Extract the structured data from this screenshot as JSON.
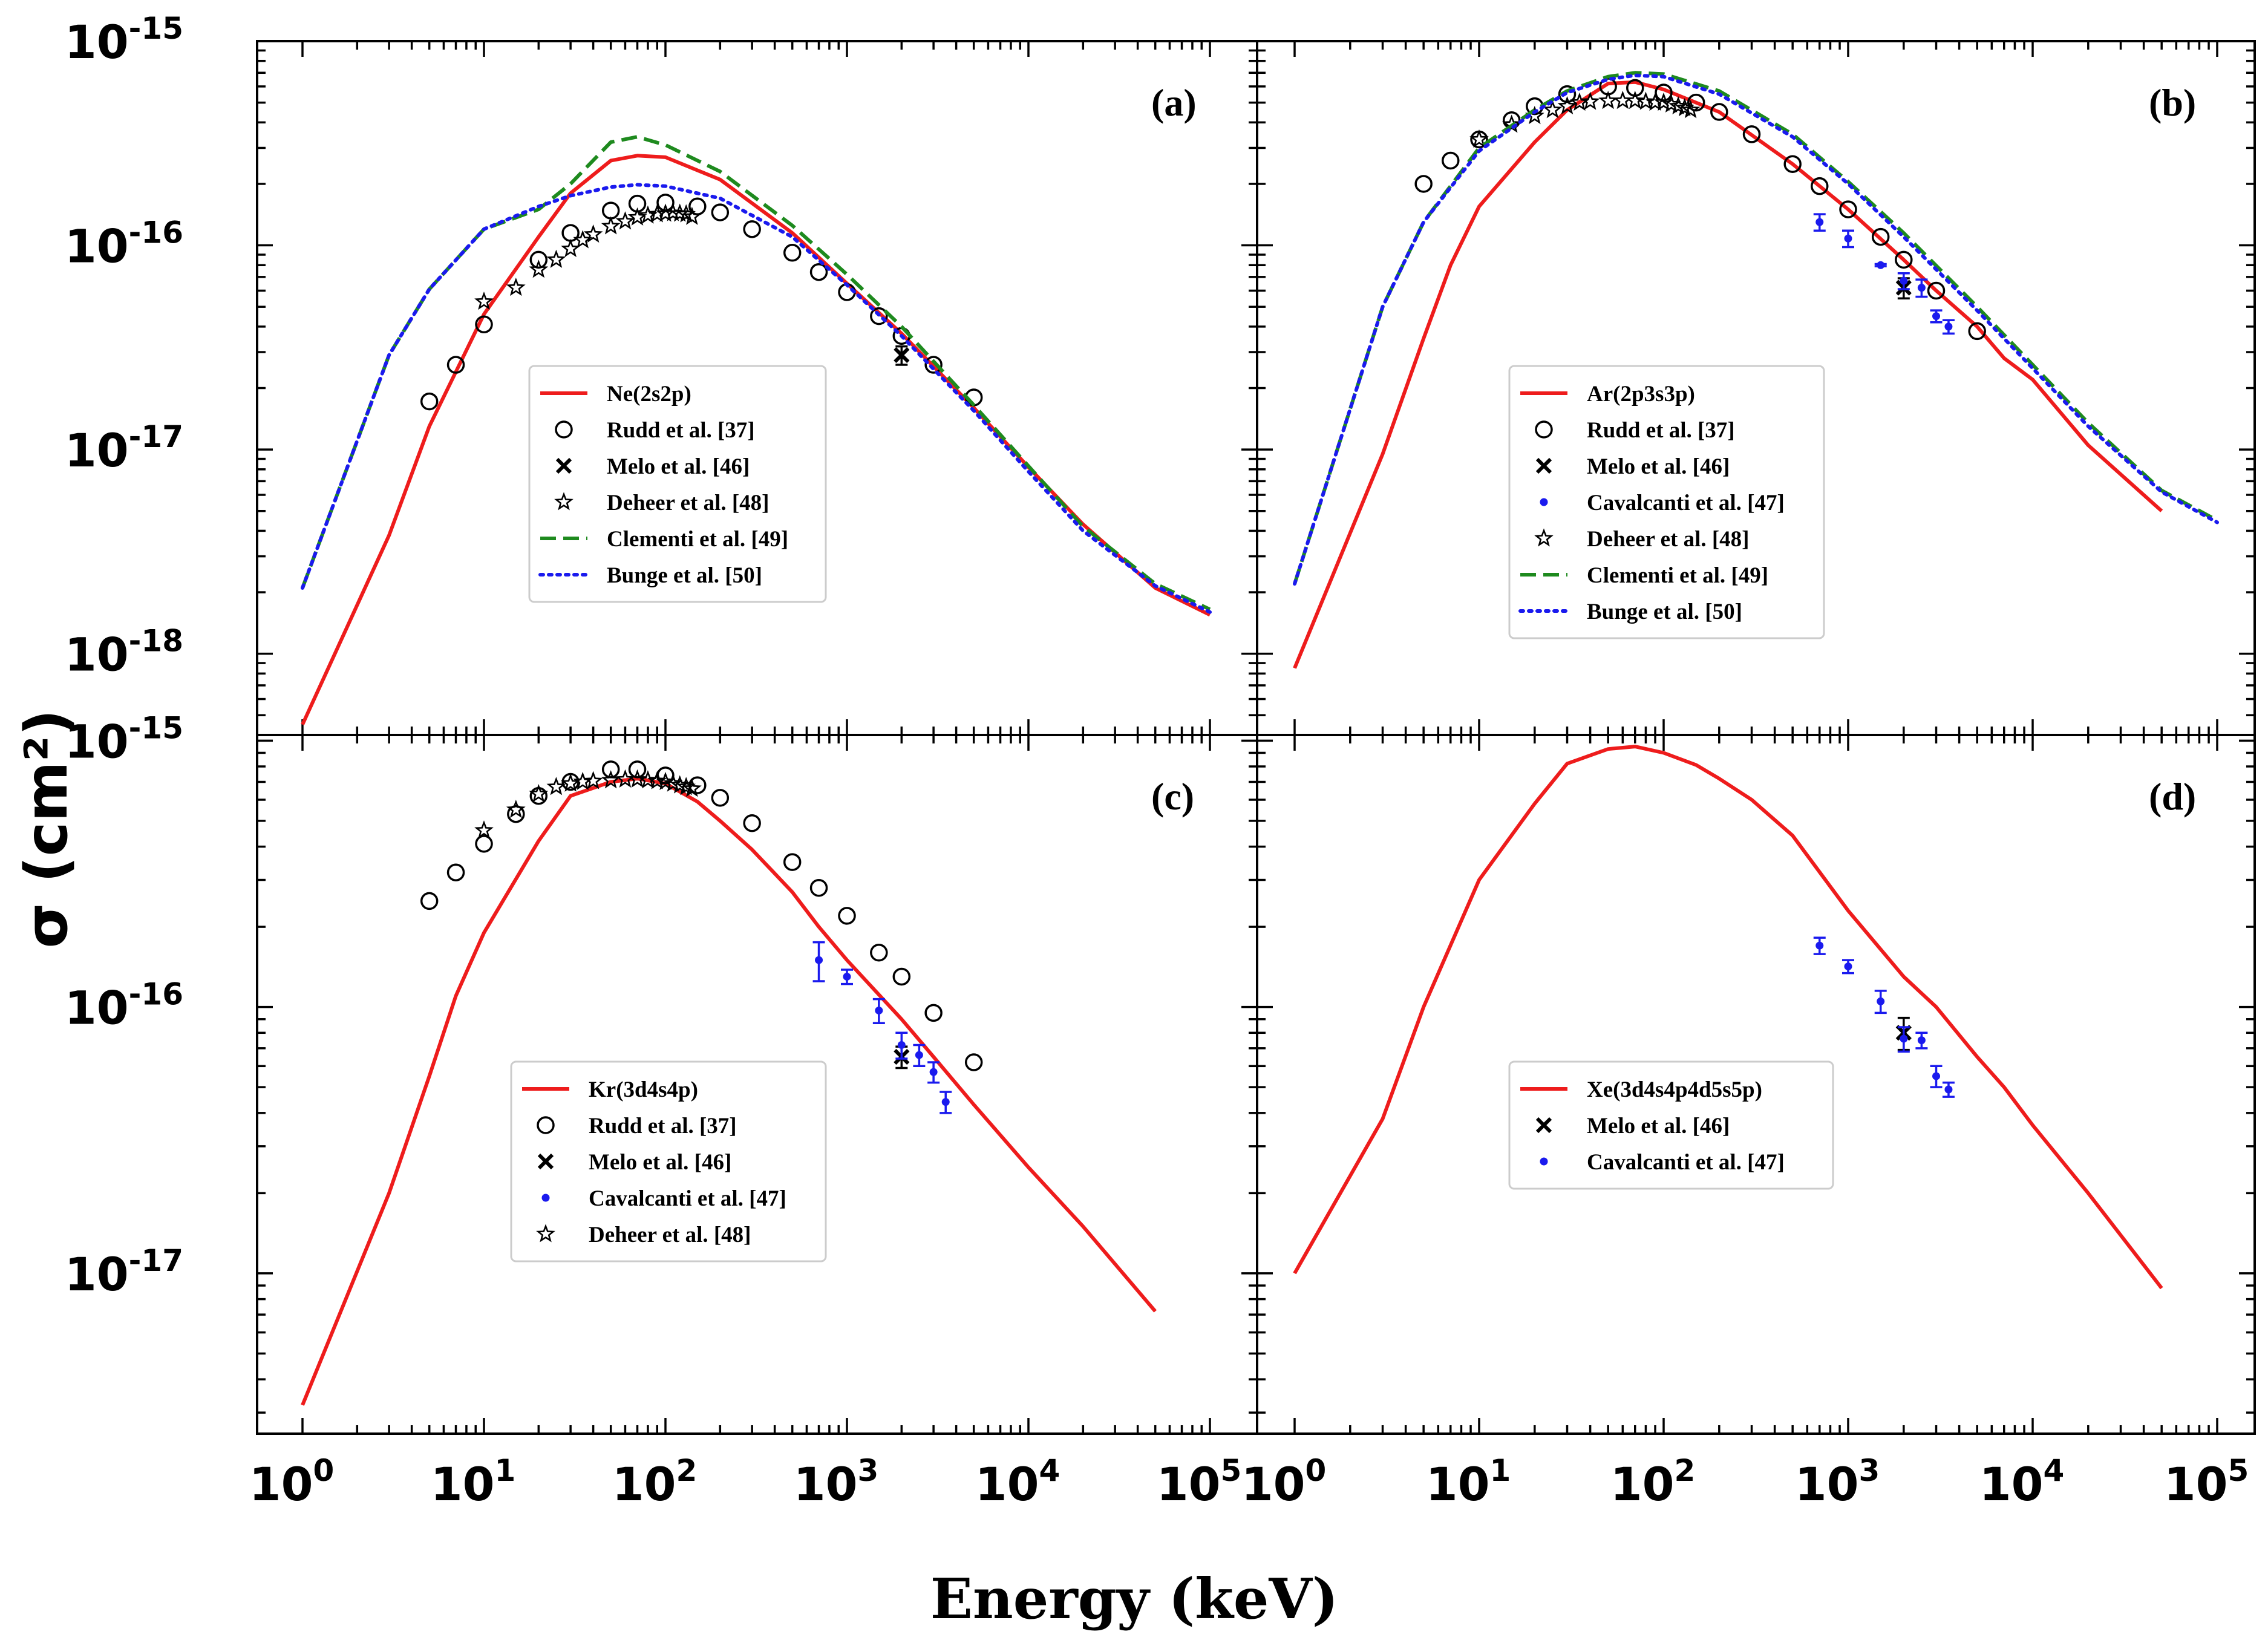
{
  "figure": {
    "ylabel": "σ (cm²)",
    "xlabel": "Energy (keV)",
    "colors": {
      "model": "#ee1c1c",
      "clementi": "#1e8a1e",
      "bunge": "#1a1aee",
      "cavalcanti": "#1a1aee",
      "black": "#000000"
    }
  },
  "chart_data": [
    {
      "id": "a",
      "type": "line",
      "label": "(a)",
      "xscale": "log",
      "yscale": "log",
      "xlim": [
        1,
        100000
      ],
      "ylim": [
        4e-19,
        1e-15
      ],
      "xticks": [
        1,
        10,
        100,
        1000,
        10000,
        100000
      ],
      "yticks": [
        1e-18,
        1e-17,
        1e-16,
        1e-15
      ],
      "show_xticklabels": false,
      "show_yticklabels": true,
      "legend_position": "center-left",
      "series": [
        {
          "name": "Ne(2s2p)",
          "style": "line",
          "color": "#ee1c1c",
          "x": [
            1,
            3,
            5,
            10,
            20,
            30,
            50,
            70,
            100,
            200,
            500,
            1000,
            2000,
            5000,
            10000,
            20000,
            50000,
            100000
          ],
          "y": [
            4.5e-19,
            3.8e-18,
            1.3e-17,
            4.6e-17,
            1.1e-16,
            1.8e-16,
            2.6e-16,
            2.75e-16,
            2.7e-16,
            2.1e-16,
            1.15e-16,
            6.5e-17,
            3.7e-17,
            1.6e-17,
            8.2e-18,
            4.3e-18,
            2.1e-18,
            1.55e-18
          ]
        },
        {
          "name": "Rudd et al. [37]",
          "style": "circle",
          "color": "#000000",
          "x": [
            5,
            7,
            10,
            20,
            30,
            50,
            70,
            100,
            150,
            200,
            300,
            500,
            700,
            1000,
            1500,
            2000,
            3000,
            5000
          ],
          "y": [
            1.72e-17,
            2.6e-17,
            4.1e-17,
            8.5e-17,
            1.15e-16,
            1.48e-16,
            1.6e-16,
            1.62e-16,
            1.55e-16,
            1.45e-16,
            1.2e-16,
            9.2e-17,
            7.4e-17,
            5.9e-17,
            4.5e-17,
            3.6e-17,
            2.6e-17,
            1.8e-17
          ]
        },
        {
          "name": "Melo et al. [46]",
          "style": "x",
          "color": "#000000",
          "x": [
            2000
          ],
          "y": [
            2.9e-17
          ],
          "yerr": [
            3e-18
          ]
        },
        {
          "name": "Deheer et al. [48]",
          "style": "star",
          "color": "#000000",
          "x": [
            10,
            15,
            20,
            25,
            30,
            35,
            40,
            50,
            60,
            70,
            80,
            90,
            100,
            110,
            120,
            130,
            140
          ],
          "y": [
            5.3e-17,
            6.2e-17,
            7.6e-17,
            8.5e-17,
            9.6e-17,
            1.06e-16,
            1.13e-16,
            1.24e-16,
            1.31e-16,
            1.37e-16,
            1.4e-16,
            1.42e-16,
            1.43e-16,
            1.44e-16,
            1.43e-16,
            1.42e-16,
            1.38e-16
          ]
        },
        {
          "name": "Clementi et al. [49]",
          "style": "dashed",
          "color": "#1e8a1e",
          "x": [
            1,
            3,
            5,
            10,
            20,
            30,
            50,
            70,
            100,
            200,
            500,
            1000,
            2000,
            5000,
            10000,
            20000,
            50000,
            100000
          ],
          "y": [
            2.1e-18,
            2.9e-17,
            6.1e-17,
            1.2e-16,
            1.5e-16,
            2e-16,
            3.2e-16,
            3.4e-16,
            3.1e-16,
            2.3e-16,
            1.25e-16,
            7.2e-17,
            4e-17,
            1.65e-17,
            8.3e-18,
            4.2e-18,
            2.2e-18,
            1.65e-18
          ]
        },
        {
          "name": "Bunge et al. [50]",
          "style": "dotted",
          "color": "#1a1aee",
          "x": [
            1,
            3,
            5,
            10,
            20,
            30,
            50,
            70,
            100,
            200,
            500,
            1000,
            2000,
            5000,
            10000,
            20000,
            50000,
            100000
          ],
          "y": [
            2.1e-18,
            2.9e-17,
            6.1e-17,
            1.2e-16,
            1.55e-16,
            1.75e-16,
            1.93e-16,
            1.98e-16,
            1.95e-16,
            1.7e-16,
            1.1e-16,
            6.4e-17,
            3.6e-17,
            1.55e-17,
            7.8e-18,
            4e-18,
            2.15e-18,
            1.6e-18
          ]
        }
      ]
    },
    {
      "id": "b",
      "type": "line",
      "label": "(b)",
      "xscale": "log",
      "yscale": "log",
      "xlim": [
        1,
        100000
      ],
      "ylim": [
        4e-19,
        1e-15
      ],
      "xticks": [
        1,
        10,
        100,
        1000,
        10000,
        100000
      ],
      "yticks": [
        1e-18,
        1e-17,
        1e-16,
        1e-15
      ],
      "show_xticklabels": false,
      "show_yticklabels": false,
      "legend_position": "center-right",
      "series": [
        {
          "name": "Ar(2p3s3p)",
          "style": "line",
          "color": "#ee1c1c",
          "x": [
            1,
            3,
            5,
            7,
            10,
            20,
            30,
            50,
            70,
            100,
            200,
            500,
            1000,
            2000,
            3000,
            5000,
            7000,
            10000,
            20000,
            50000
          ],
          "y": [
            8.5e-19,
            9.5e-18,
            3.5e-17,
            8e-17,
            1.55e-16,
            3.2e-16,
            4.6e-16,
            6.2e-16,
            6.3e-16,
            5.8e-16,
            4.5e-16,
            2.5e-16,
            1.5e-16,
            8.5e-17,
            6e-17,
            4e-17,
            2.8e-17,
            2.2e-17,
            1.05e-17,
            5e-18
          ]
        },
        {
          "name": "Rudd et al. [37]",
          "style": "circle",
          "color": "#000000",
          "x": [
            5,
            7,
            10,
            15,
            20,
            30,
            50,
            70,
            100,
            150,
            200,
            300,
            500,
            700,
            1000,
            1500,
            2000,
            3000,
            5000
          ],
          "y": [
            2e-16,
            2.6e-16,
            3.3e-16,
            4.1e-16,
            4.8e-16,
            5.5e-16,
            6e-16,
            5.9e-16,
            5.6e-16,
            5e-16,
            4.5e-16,
            3.5e-16,
            2.5e-16,
            1.95e-16,
            1.5e-16,
            1.1e-16,
            8.5e-17,
            6e-17,
            3.8e-17
          ]
        },
        {
          "name": "Melo et al. [46]",
          "style": "x",
          "color": "#000000",
          "x": [
            2000
          ],
          "y": [
            6.2e-17
          ],
          "yerr": [
            7e-18
          ]
        },
        {
          "name": "Cavalcanti et al. [47]",
          "style": "dot",
          "color": "#1a1aee",
          "x": [
            700,
            1000,
            1500,
            2000,
            2500,
            3000,
            3500
          ],
          "y": [
            1.3e-16,
            1.08e-16,
            8e-17,
            6.7e-17,
            6.2e-17,
            4.5e-17,
            4e-17
          ],
          "yerr": [
            1.2e-17,
            1e-17,
            1e-18,
            6e-18,
            6e-18,
            3e-18,
            3e-18
          ]
        },
        {
          "name": "Deheer et al. [48]",
          "style": "star",
          "color": "#000000",
          "x": [
            10,
            15,
            20,
            25,
            30,
            35,
            40,
            50,
            60,
            70,
            80,
            90,
            100,
            110,
            120,
            130,
            140
          ],
          "y": [
            3.3e-16,
            3.9e-16,
            4.3e-16,
            4.6e-16,
            4.8e-16,
            5e-16,
            5.05e-16,
            5.1e-16,
            5.1e-16,
            5.1e-16,
            5.05e-16,
            5e-16,
            5e-16,
            4.9e-16,
            4.8e-16,
            4.7e-16,
            4.6e-16
          ]
        },
        {
          "name": "Clementi et al. [49]",
          "style": "dashed",
          "color": "#1e8a1e",
          "x": [
            1,
            3,
            5,
            10,
            20,
            30,
            50,
            70,
            100,
            200,
            500,
            1000,
            2000,
            5000,
            10000,
            20000,
            50000,
            100000
          ],
          "y": [
            2.2e-18,
            5e-17,
            1.3e-16,
            3e-16,
            4.6e-16,
            5.7e-16,
            6.7e-16,
            7e-16,
            6.9e-16,
            5.7e-16,
            3.5e-16,
            2.05e-16,
            1.15e-16,
            5e-17,
            2.6e-17,
            1.35e-17,
            6.3e-18,
            4.5e-18
          ]
        },
        {
          "name": "Bunge et al. [50]",
          "style": "dotted",
          "color": "#1a1aee",
          "x": [
            1,
            3,
            5,
            10,
            20,
            30,
            50,
            70,
            100,
            200,
            500,
            1000,
            2000,
            5000,
            10000,
            20000,
            50000,
            100000
          ],
          "y": [
            2.2e-18,
            5e-17,
            1.3e-16,
            2.9e-16,
            4.5e-16,
            5.6e-16,
            6.5e-16,
            6.8e-16,
            6.7e-16,
            5.5e-16,
            3.4e-16,
            2e-16,
            1.1e-16,
            4.8e-17,
            2.5e-17,
            1.3e-17,
            6.2e-18,
            4.4e-18
          ]
        }
      ]
    },
    {
      "id": "c",
      "type": "line",
      "label": "(c)",
      "xscale": "log",
      "yscale": "log",
      "xlim": [
        1,
        100000
      ],
      "ylim": [
        2.5e-18,
        1.05e-15
      ],
      "xticks": [
        1,
        10,
        100,
        1000,
        10000,
        100000
      ],
      "yticks": [
        1e-17,
        1e-16,
        1e-15
      ],
      "show_xticklabels": true,
      "show_yticklabels": true,
      "legend_position": "center-left",
      "series": [
        {
          "name": "Kr(3d4s4p)",
          "style": "line",
          "color": "#ee1c1c",
          "x": [
            1,
            3,
            5,
            7,
            10,
            20,
            30,
            50,
            70,
            100,
            150,
            200,
            300,
            500,
            700,
            1000,
            2000,
            3000,
            5000,
            10000,
            20000,
            50000
          ],
          "y": [
            3.2e-18,
            2e-17,
            5.5e-17,
            1.1e-16,
            1.9e-16,
            4.2e-16,
            6.2e-16,
            7e-16,
            7.2e-16,
            6.9e-16,
            5.9e-16,
            5e-16,
            3.9e-16,
            2.7e-16,
            2e-16,
            1.5e-16,
            9e-17,
            6.5e-17,
            4.3e-17,
            2.5e-17,
            1.5e-17,
            7.2e-18
          ]
        },
        {
          "name": "Rudd et al. [37]",
          "style": "circle",
          "color": "#000000",
          "x": [
            5,
            7,
            10,
            15,
            20,
            30,
            50,
            70,
            100,
            150,
            200,
            300,
            500,
            700,
            1000,
            1500,
            2000,
            3000,
            5000
          ],
          "y": [
            2.5e-16,
            3.2e-16,
            4.1e-16,
            5.3e-16,
            6.2e-16,
            7e-16,
            7.8e-16,
            7.8e-16,
            7.4e-16,
            6.8e-16,
            6.1e-16,
            4.9e-16,
            3.5e-16,
            2.8e-16,
            2.2e-16,
            1.6e-16,
            1.3e-16,
            9.5e-17,
            6.2e-17
          ]
        },
        {
          "name": "Melo et al. [46]",
          "style": "x",
          "color": "#000000",
          "x": [
            2000
          ],
          "y": [
            6.5e-17
          ],
          "yerr": [
            6e-18
          ]
        },
        {
          "name": "Cavalcanti et al. [47]",
          "style": "dot",
          "color": "#1a1aee",
          "x": [
            700,
            1000,
            1500,
            2000,
            2500,
            3000,
            3500
          ],
          "y": [
            1.5e-16,
            1.3e-16,
            9.7e-17,
            7.2e-17,
            6.6e-17,
            5.7e-17,
            4.4e-17
          ],
          "yerr": [
            2.5e-17,
            8e-18,
            1e-17,
            8e-18,
            6e-18,
            5e-18,
            4e-18
          ]
        },
        {
          "name": "Deheer et al. [48]",
          "style": "star",
          "color": "#000000",
          "x": [
            10,
            15,
            20,
            25,
            30,
            35,
            40,
            50,
            60,
            70,
            80,
            90,
            100,
            110,
            120,
            130,
            140
          ],
          "y": [
            4.6e-16,
            5.5e-16,
            6.3e-16,
            6.7e-16,
            6.9e-16,
            7e-16,
            7.05e-16,
            7.1e-16,
            7.15e-16,
            7.15e-16,
            7.1e-16,
            7.05e-16,
            7e-16,
            6.9e-16,
            6.8e-16,
            6.7e-16,
            6.6e-16
          ]
        }
      ]
    },
    {
      "id": "d",
      "type": "line",
      "label": "(d)",
      "xscale": "log",
      "yscale": "log",
      "xlim": [
        1,
        100000
      ],
      "ylim": [
        2.5e-18,
        1.05e-15
      ],
      "xticks": [
        1,
        10,
        100,
        1000,
        10000,
        100000
      ],
      "yticks": [
        1e-17,
        1e-16,
        1e-15
      ],
      "show_xticklabels": true,
      "show_yticklabels": false,
      "legend_position": "center-right",
      "series": [
        {
          "name": "Xe(3d4s4p4d5s5p)",
          "style": "line",
          "color": "#ee1c1c",
          "x": [
            1,
            3,
            5,
            10,
            20,
            30,
            50,
            70,
            100,
            150,
            200,
            300,
            500,
            1000,
            2000,
            3000,
            5000,
            7000,
            10000,
            20000,
            50000
          ],
          "y": [
            1e-17,
            3.8e-17,
            1e-16,
            3e-16,
            5.8e-16,
            8.2e-16,
            9.3e-16,
            9.5e-16,
            9e-16,
            8.1e-16,
            7.2e-16,
            6e-16,
            4.4e-16,
            2.3e-16,
            1.3e-16,
            1e-16,
            6.5e-17,
            5e-17,
            3.6e-17,
            2e-17,
            8.8e-18
          ]
        },
        {
          "name": "Melo et al. [46]",
          "style": "x",
          "color": "#000000",
          "x": [
            2000
          ],
          "y": [
            8e-17
          ],
          "yerr": [
            1.1e-17
          ]
        },
        {
          "name": "Cavalcanti et al. [47]",
          "style": "dot",
          "color": "#1a1aee",
          "x": [
            700,
            1000,
            1500,
            2000,
            2500,
            3000,
            3500
          ],
          "y": [
            1.7e-16,
            1.42e-16,
            1.05e-16,
            7.6e-17,
            7.5e-17,
            5.5e-17,
            4.9e-17
          ],
          "yerr": [
            1.2e-17,
            8e-18,
            1e-17,
            8e-18,
            5e-18,
            5e-18,
            3e-18
          ]
        }
      ]
    }
  ]
}
